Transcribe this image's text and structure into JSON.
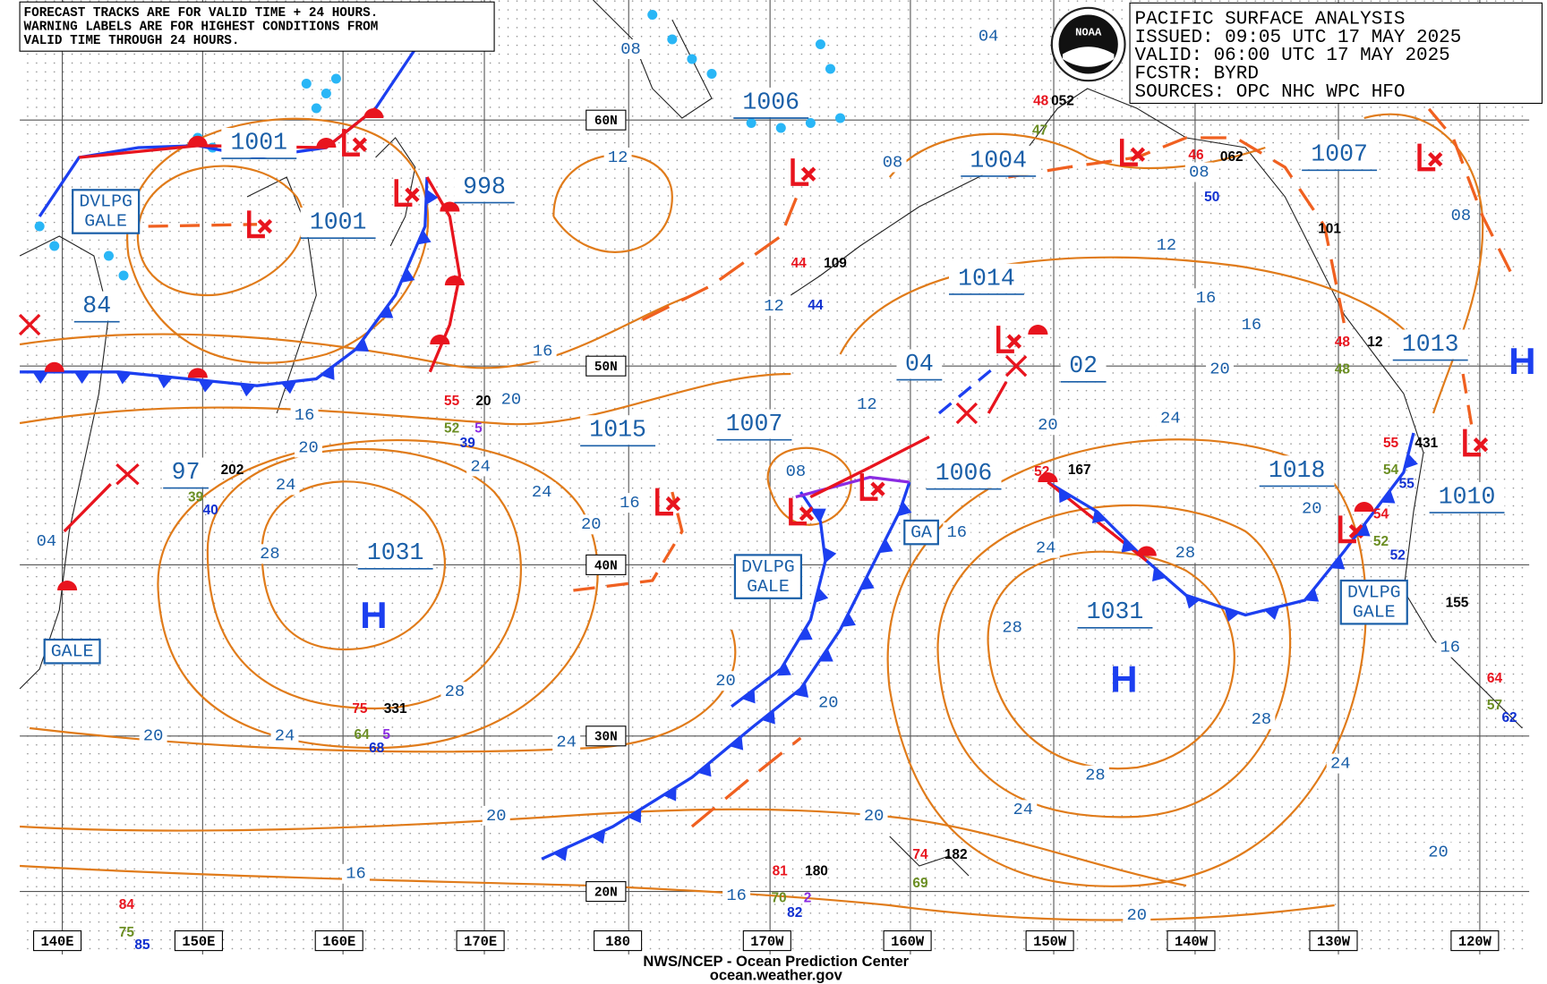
{
  "info_box": {
    "lines": [
      "PACIFIC SURFACE ANALYSIS",
      "ISSUED: 09:05 UTC 17 MAY 2025",
      "VALID:  06:00 UTC 17 MAY 2025",
      "FCSTR:  BYRD",
      "SOURCES: OPC NHC WPC HFO"
    ]
  },
  "note": {
    "lines": [
      "FORECAST TRACKS ARE FOR VALID TIME + 24 HOURS.",
      "WARNING LABELS ARE FOR HIGHEST CONDITIONS FROM",
      "VALID TIME THROUGH 24 HOURS."
    ]
  },
  "logo_text": "NOAA",
  "latitude_labels": [
    "60N",
    "50N",
    "40N",
    "30N",
    "20N"
  ],
  "longitude_labels": [
    "140E",
    "150E",
    "160E",
    "170E",
    "180",
    "170W",
    "160W",
    "150W",
    "140W",
    "130W",
    "120W"
  ],
  "pressure_centers": [
    "1001",
    "1001",
    "998",
    "1006",
    "1004",
    "1007",
    "1014",
    "04",
    "02",
    "1015",
    "1007",
    "1006",
    "97",
    "84",
    "1031",
    "1031",
    "1018",
    "1013",
    "1010"
  ],
  "highs": [
    "H",
    "H",
    "H"
  ],
  "isobar_labels": [
    "08",
    "04",
    "12",
    "08",
    "08",
    "08",
    "12",
    "12",
    "16",
    "16",
    "16",
    "20",
    "16",
    "20",
    "12",
    "20",
    "24",
    "20",
    "24",
    "24",
    "24",
    "08",
    "16",
    "20",
    "20",
    "28",
    "16",
    "24",
    "28",
    "04",
    "28",
    "16",
    "20",
    "28",
    "20",
    "28",
    "20",
    "24",
    "24",
    "24",
    "28",
    "20",
    "20",
    "24",
    "20",
    "16",
    "16",
    "20"
  ],
  "warnings": [
    {
      "lines": [
        "DVLPG",
        "GALE"
      ]
    },
    {
      "lines": [
        "DVLPG",
        "GALE"
      ]
    },
    {
      "lines": [
        "DVLPG",
        "GALE"
      ]
    },
    {
      "lines": [
        "GALE"
      ]
    },
    {
      "lines": [
        "GA"
      ]
    }
  ],
  "stations": [
    {
      "text": "48",
      "color": "#e8141e"
    },
    {
      "text": "052",
      "color": "#000000"
    },
    {
      "text": "47",
      "color": "#6b8e23"
    },
    {
      "text": "44",
      "color": "#e8141e"
    },
    {
      "text": "109",
      "color": "#000000"
    },
    {
      "text": "44",
      "color": "#1030d0"
    },
    {
      "text": "55",
      "color": "#e8141e"
    },
    {
      "text": "20",
      "color": "#000000"
    },
    {
      "text": "52",
      "color": "#6b8e23"
    },
    {
      "text": "5",
      "color": "#8a2be2"
    },
    {
      "text": "39",
      "color": "#1030d0"
    },
    {
      "text": "202",
      "color": "#000000"
    },
    {
      "text": "39",
      "color": "#6b8e23"
    },
    {
      "text": "40",
      "color": "#1030d0"
    },
    {
      "text": "75",
      "color": "#e8141e"
    },
    {
      "text": "331",
      "color": "#000000"
    },
    {
      "text": "64",
      "color": "#6b8e23"
    },
    {
      "text": "5",
      "color": "#8a2be2"
    },
    {
      "text": "68",
      "color": "#1030d0"
    },
    {
      "text": "81",
      "color": "#e8141e"
    },
    {
      "text": "180",
      "color": "#000000"
    },
    {
      "text": "70",
      "color": "#6b8e23"
    },
    {
      "text": "2",
      "color": "#8a2be2"
    },
    {
      "text": "82",
      "color": "#1030d0"
    },
    {
      "text": "74",
      "color": "#e8141e"
    },
    {
      "text": "182",
      "color": "#000000"
    },
    {
      "text": "69",
      "color": "#6b8e23"
    },
    {
      "text": "84",
      "color": "#e8141e"
    },
    {
      "text": "75",
      "color": "#6b8e23"
    },
    {
      "text": "85",
      "color": "#1030d0"
    },
    {
      "text": "52",
      "color": "#e8141e"
    },
    {
      "text": "167",
      "color": "#000000"
    },
    {
      "text": "46",
      "color": "#e8141e"
    },
    {
      "text": "062",
      "color": "#000000"
    },
    {
      "text": "50",
      "color": "#1030d0"
    },
    {
      "text": "101",
      "color": "#000000"
    },
    {
      "text": "48",
      "color": "#e8141e"
    },
    {
      "text": "12",
      "color": "#000000"
    },
    {
      "text": "48",
      "color": "#6b8e23"
    },
    {
      "text": "55",
      "color": "#e8141e"
    },
    {
      "text": "431",
      "color": "#000000"
    },
    {
      "text": "54",
      "color": "#6b8e23"
    },
    {
      "text": "55",
      "color": "#1030d0"
    },
    {
      "text": "54",
      "color": "#e8141e"
    },
    {
      "text": "52",
      "color": "#6b8e23"
    },
    {
      "text": "52",
      "color": "#1030d0"
    },
    {
      "text": "155",
      "color": "#000000"
    },
    {
      "text": "64",
      "color": "#e8141e"
    },
    {
      "text": "57",
      "color": "#6b8e23"
    },
    {
      "text": "62",
      "color": "#1030d0"
    }
  ],
  "footer": {
    "lines": [
      "NWS/NCEP - Ocean Prediction Center",
      "ocean.weather.gov"
    ]
  }
}
